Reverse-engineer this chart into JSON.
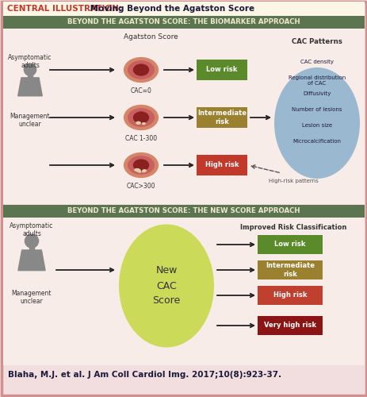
{
  "title_prefix": "CENTRAL ILLUSTRATION:",
  "title_main": " Moving Beyond the Agatston Score",
  "section1_title": "BEYOND THE AGATSTON SCORE: THE BIOMARKER APPROACH",
  "section2_title": "BEYOND THE AGATSTON SCORE: THE NEW SCORE APPROACH",
  "section1_header": "Agatston Score",
  "cac_labels": [
    "CAC=0",
    "CAC 1-300",
    "CAC>300"
  ],
  "risk_labels_top": [
    "Low risk",
    "Intermediate\nrisk",
    "High risk"
  ],
  "risk_colors_top": [
    "#5a8a2a",
    "#9b8030",
    "#c0392b"
  ],
  "cac_patterns_title": "CAC Patterns",
  "cac_patterns_items": [
    "CAC density",
    "Regional distribution\nof CAC",
    "Diffusivity",
    "Number of lesions",
    "Lesion size",
    "Microcalcification"
  ],
  "high_risk_label": "High-risk patterns",
  "person_label_top1": "Asymptomatic\nadults",
  "person_label_bot1": "Management\nunclear",
  "section2_circle_text": "New\nCAC\nScore",
  "section2_header": "Improved Risk Classification",
  "risk_labels_bottom": [
    "Low risk",
    "Intermediate\nrisk",
    "High risk",
    "Very high risk"
  ],
  "risk_colors_bottom": [
    "#5a8a2a",
    "#9b8030",
    "#c04030",
    "#8b1515"
  ],
  "citation": "Blaha, M.J. et al. J Am Coll Cardiol Img. 2017;10(8):923-37.",
  "bg_color": "#f2dede",
  "section_bg_color": "#f7ece8",
  "section_header_color": "#5a7550",
  "section_header_text_color": "#f0e8d0",
  "title_bg_color": "#fdf5e6",
  "cac_ellipse_color": "#8ab0cc",
  "new_score_color": "#c8d84a",
  "person_color": "#888888",
  "artery_outer": "#d4856a",
  "artery_mid": "#c86060",
  "artery_lumen": "#8b2020",
  "artery_calc": "#ddd0a8"
}
